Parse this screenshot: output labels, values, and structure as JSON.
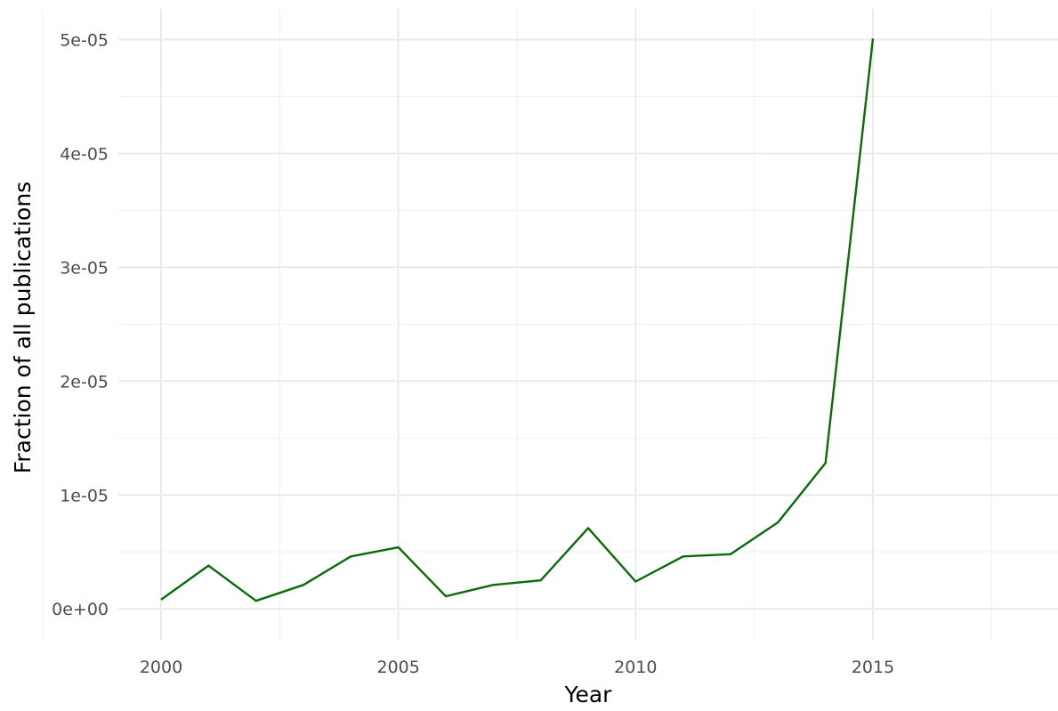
{
  "chart_data": {
    "type": "line",
    "title": "",
    "xlabel": "Year",
    "ylabel": "Fraction of all publications",
    "x": [
      2000,
      2001,
      2002,
      2003,
      2004,
      2005,
      2006,
      2007,
      2008,
      2009,
      2010,
      2011,
      2012,
      2013,
      2014,
      2015
    ],
    "series": [
      {
        "values": [
          8e-07,
          3.8e-06,
          7e-07,
          2.1e-06,
          4.6e-06,
          5.4e-06,
          1.1e-06,
          2.1e-06,
          2.5e-06,
          7.1e-06,
          2.4e-06,
          4.6e-06,
          4.8e-06,
          7.6e-06,
          1.28e-05,
          5.01e-05
        ],
        "color": "#0a6b0a"
      }
    ],
    "xlim": [
      1999.1,
      2018.9
    ],
    "ylim": [
      -2.8e-06,
      5.27e-05
    ],
    "x_ticks": [
      2000,
      2005,
      2010,
      2015
    ],
    "x_tick_labels": [
      "2000",
      "2005",
      "2010",
      "2015"
    ],
    "y_ticks": [
      0,
      1e-05,
      2e-05,
      3e-05,
      4e-05,
      5e-05
    ],
    "y_tick_labels": [
      "0e+00",
      "1e-05",
      "2e-05",
      "3e-05",
      "4e-05",
      "5e-05"
    ],
    "grid": true,
    "legend": "none"
  }
}
